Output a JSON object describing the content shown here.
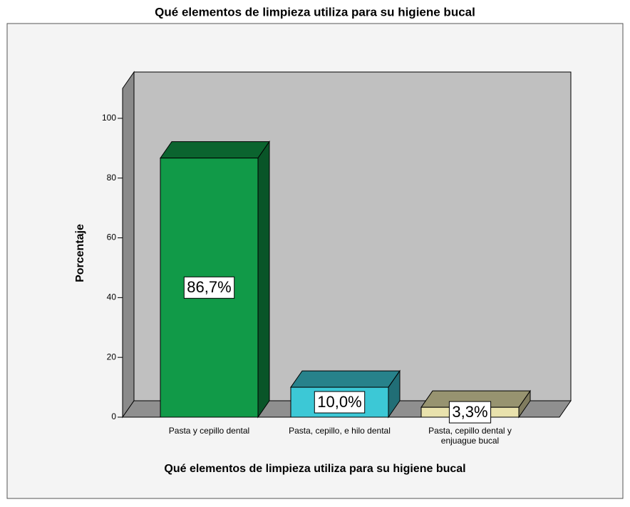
{
  "chart_data": {
    "type": "bar3d",
    "title": "Qué elementos de limpieza utiliza para su higiene bucal",
    "x_label": "Qué elementos de limpieza utiliza para su higiene bucal",
    "y_label": "Porcentaje",
    "categories": [
      "Pasta y cepillo dental",
      "Pasta, cepillo, e hilo dental",
      "Pasta, cepillo dental y enjuague bucal"
    ],
    "values": [
      86.7,
      10.0,
      3.3
    ],
    "value_labels": [
      "86,7%",
      "10,0%",
      "3,3%"
    ],
    "colors": [
      "#119a48",
      "#3cc8d6",
      "#e9e2ad"
    ],
    "ylim": [
      0,
      110
    ],
    "yticks": [
      0,
      20,
      40,
      60,
      80,
      100
    ]
  }
}
